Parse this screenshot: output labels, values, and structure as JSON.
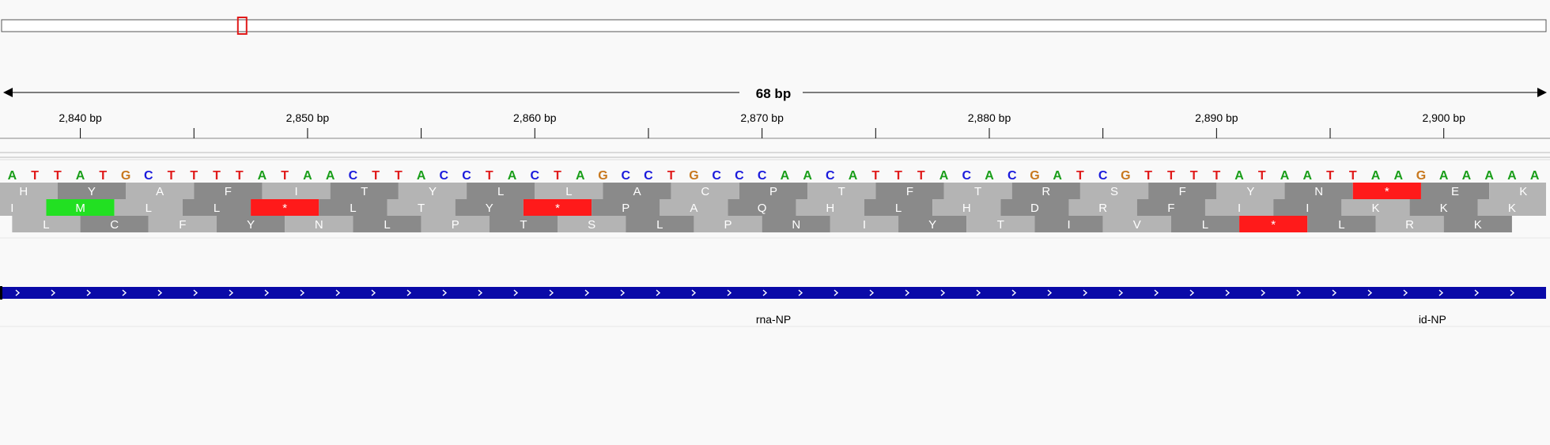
{
  "ruler": {
    "span_label": "68 bp",
    "ticks": [
      {
        "pos": 2840,
        "label": "2,840 bp"
      },
      {
        "pos": 2850,
        "label": "2,850 bp"
      },
      {
        "pos": 2860,
        "label": "2,860 bp"
      },
      {
        "pos": 2870,
        "label": "2,870 bp"
      },
      {
        "pos": 2880,
        "label": "2,880 bp"
      },
      {
        "pos": 2890,
        "label": "2,890 bp"
      },
      {
        "pos": 2900,
        "label": "2,900 bp"
      }
    ],
    "minor_ticks": [
      2845,
      2855,
      2865,
      2875,
      2885,
      2895
    ]
  },
  "view": {
    "start": 2836.5,
    "end": 2904.5
  },
  "ideogram": {
    "highlight_fraction": 0.153
  },
  "colors": {
    "A": "#1a9e1a",
    "C": "#1a1adc",
    "G": "#c8781e",
    "T": "#e01a1a",
    "stop": "#ff1a1a",
    "start": "#22e022",
    "aa_light": "#b4b4b4",
    "aa_dark": "#8a8a8a",
    "gene": "#0a0aa8"
  },
  "sequence": "ATTATGCTTTTATAACTTACCTACTAGCCTGCCCAACATTTACACGATCGTTTTATAATTAAGAAAAA",
  "frames": [
    {
      "offset": -0.5,
      "aa": [
        "H",
        "Y",
        "A",
        "F",
        "I",
        "T",
        "Y",
        "L",
        "L",
        "A",
        "C",
        "P",
        "T",
        "F",
        "T",
        "R",
        "S",
        "F",
        "Y",
        "N",
        "*",
        "E",
        "K"
      ]
    },
    {
      "offset": -1.0,
      "aa": [
        "I",
        "M",
        "L",
        "L",
        "*",
        "L",
        "T",
        "Y",
        "*",
        "P",
        "A",
        "Q",
        "H",
        "L",
        "H",
        "D",
        "R",
        "F",
        "I",
        "I",
        "K",
        "K",
        "K"
      ]
    },
    {
      "offset": 0.5,
      "aa": [
        "L",
        "C",
        "F",
        "Y",
        "N",
        "L",
        "P",
        "T",
        "S",
        "L",
        "P",
        "N",
        "I",
        "Y",
        "T",
        "I",
        "V",
        "L",
        "*",
        "L",
        "R",
        "K"
      ]
    }
  ],
  "features": [
    {
      "label": "rna-NP",
      "pos": 2870.5
    },
    {
      "label": "id-NP",
      "pos": 2899.5
    }
  ]
}
